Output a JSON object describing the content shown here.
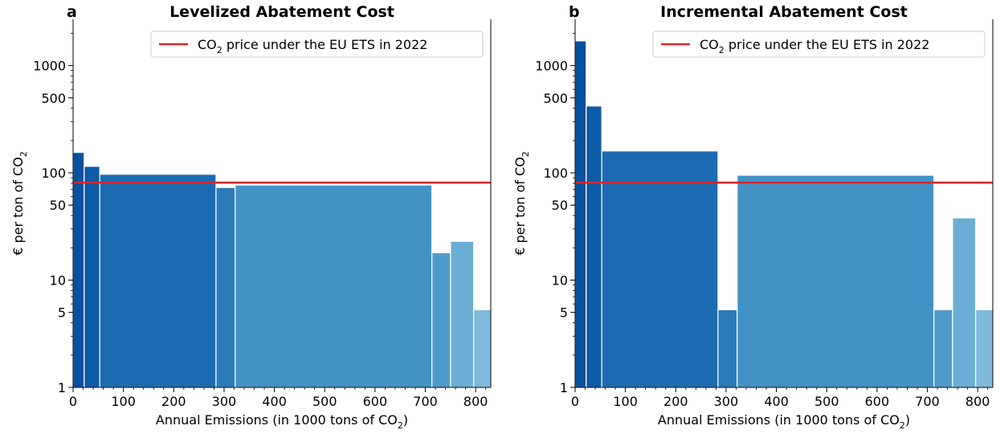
{
  "chart_data": [
    {
      "type": "bar",
      "panel_letter": "a",
      "title": "Levelized Abatement Cost",
      "xlabel": "Annual Emissions (in 1000 tons of CO",
      "xlabel_subscript": "2",
      "xlabel_suffix": ")",
      "ylabel": "€ per ton of CO",
      "ylabel_subscript": "2",
      "y_scale": "log",
      "xlim": [
        0,
        830
      ],
      "ylim": [
        1,
        2700
      ],
      "x_ticks": [
        0,
        100,
        200,
        300,
        400,
        500,
        600,
        700,
        800
      ],
      "y_ticks": [
        1,
        5,
        10,
        50,
        100,
        500,
        1000
      ],
      "reference_line": {
        "value": 81,
        "color": "#d62728",
        "label": "CO",
        "label_subscript": "2",
        "label_suffix": " price under the EU ETS in 2022"
      },
      "legend_position": "top-right",
      "grid": false,
      "bars": [
        {
          "x0": 0,
          "x1": 22,
          "value": 155,
          "color": "#08519c"
        },
        {
          "x0": 22,
          "x1": 53,
          "value": 115,
          "color": "#0d5aa6"
        },
        {
          "x0": 53,
          "x1": 284,
          "value": 97,
          "color": "#1c6bb2"
        },
        {
          "x0": 284,
          "x1": 322,
          "value": 73,
          "color": "#2b7bba"
        },
        {
          "x0": 322,
          "x1": 713,
          "value": 77,
          "color": "#4292c6"
        },
        {
          "x0": 713,
          "x1": 750,
          "value": 18,
          "color": "#4f9bcb"
        },
        {
          "x0": 750,
          "x1": 796,
          "value": 23,
          "color": "#6aaed6"
        },
        {
          "x0": 796,
          "x1": 830,
          "value": 5.3,
          "color": "#7fb9dc"
        }
      ]
    },
    {
      "type": "bar",
      "panel_letter": "b",
      "title": "Incremental Abatement Cost",
      "xlabel": "Annual Emissions (in 1000 tons of CO",
      "xlabel_subscript": "2",
      "xlabel_suffix": ")",
      "ylabel": "€ per ton of CO",
      "ylabel_subscript": "2",
      "y_scale": "log",
      "xlim": [
        0,
        830
      ],
      "ylim": [
        1,
        2700
      ],
      "x_ticks": [
        0,
        100,
        200,
        300,
        400,
        500,
        600,
        700,
        800
      ],
      "y_ticks": [
        1,
        5,
        10,
        50,
        100,
        500,
        1000
      ],
      "reference_line": {
        "value": 81,
        "color": "#d62728",
        "label": "CO",
        "label_subscript": "2",
        "label_suffix": " price under the EU ETS in 2022"
      },
      "legend_position": "top-right",
      "grid": false,
      "bars": [
        {
          "x0": 0,
          "x1": 22,
          "value": 1700,
          "color": "#08519c"
        },
        {
          "x0": 22,
          "x1": 53,
          "value": 420,
          "color": "#0d5aa6"
        },
        {
          "x0": 53,
          "x1": 284,
          "value": 160,
          "color": "#1c6bb2"
        },
        {
          "x0": 284,
          "x1": 322,
          "value": 5.3,
          "color": "#2b7bba"
        },
        {
          "x0": 322,
          "x1": 713,
          "value": 95,
          "color": "#4292c6"
        },
        {
          "x0": 713,
          "x1": 750,
          "value": 5.3,
          "color": "#4f9bcb"
        },
        {
          "x0": 750,
          "x1": 796,
          "value": 38,
          "color": "#6aaed6"
        },
        {
          "x0": 796,
          "x1": 830,
          "value": 5.3,
          "color": "#7fb9dc"
        }
      ]
    }
  ]
}
